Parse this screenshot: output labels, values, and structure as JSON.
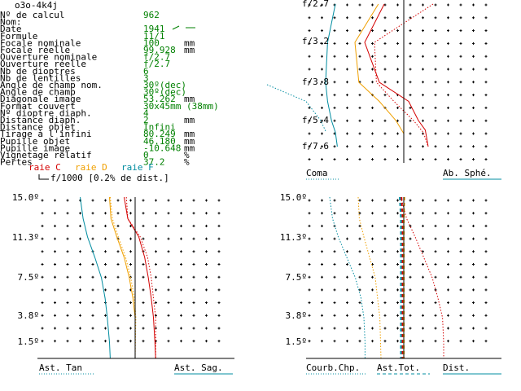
{
  "header": {
    "title": "o3o-4k4j"
  },
  "specs": [
    {
      "label": "Nº de calcul",
      "value": "962",
      "unit": ""
    },
    {
      "label": "Nom:",
      "value": "",
      "unit": ""
    },
    {
      "label": "Date",
      "value": "1941",
      "unit": ""
    },
    {
      "label": "Formule",
      "value": "11/1",
      "unit": ""
    },
    {
      "label": "Focale nominale",
      "value": "100",
      "unit": "mm"
    },
    {
      "label": "Focale réelle",
      "value": "99.928",
      "unit": "mm"
    },
    {
      "label": "Ouverture nominale",
      "value": "f/2.7",
      "unit": ""
    },
    {
      "label": "Ouverture réelle",
      "value": "f/2.7",
      "unit": ""
    },
    {
      "label": "Nb de dioptres",
      "value": "6",
      "unit": ""
    },
    {
      "label": "Nb de lentilles",
      "value": "3",
      "unit": ""
    },
    {
      "label": "Angle de champ nom.",
      "value": "30º(dec)",
      "unit": ""
    },
    {
      "label": "Angle de champ",
      "value": "30º(dec)",
      "unit": ""
    },
    {
      "label": "Diagonale image",
      "value": "53.262",
      "unit": "mm"
    },
    {
      "label": "Format couvert",
      "value": "30x45mm (38mm)",
      "unit": ""
    },
    {
      "label": "Nº dioptre diaph.",
      "value": "4",
      "unit": ""
    },
    {
      "label": "Distance diaph.",
      "value": "2",
      "unit": "mm"
    },
    {
      "label": "Distance objet",
      "value": "Infini",
      "unit": ""
    },
    {
      "label": "Tirage à l'infini",
      "value": "80.249",
      "unit": "mm"
    },
    {
      "label": "Pupille objet",
      "value": "46.180",
      "unit": "mm"
    },
    {
      "label": "Pupille image",
      "value": "-10.648",
      "unit": "mm"
    },
    {
      "label": "Vignetage relatif",
      "value": "0",
      "unit": "%"
    },
    {
      "label": "Pertes",
      "value": "37.2",
      "unit": "%"
    }
  ],
  "legend": {
    "raie_c": "raie C",
    "raie_d": "raie D",
    "raie_f": "raie F",
    "scale": "f/1000 [0.2% de dist.]"
  },
  "colors": {
    "c": "#d40000",
    "d": "#f0a000",
    "f": "#008ca0",
    "green": "#008000",
    "axis": "#000000"
  },
  "chart_data": [
    {
      "type": "line",
      "name": "Coma / Ab. Sphé.",
      "y_ticks": [
        "f/2.7",
        "f/3.2",
        "f/3.8",
        "f/5.4",
        "f/7.6"
      ],
      "labels": {
        "left": "Coma",
        "right": "Ab. Sphé."
      },
      "series": [
        {
          "key": "c",
          "style": "solid",
          "points": [
            [
              -2,
              2.7
            ],
            [
              -4,
              3.2
            ],
            [
              -2.5,
              3.8
            ],
            [
              0.5,
              4.6
            ],
            [
              1.5,
              5.4
            ],
            [
              2.2,
              6.2
            ],
            [
              2.5,
              7.6
            ]
          ]
        },
        {
          "key": "d",
          "style": "solid",
          "points": [
            [
              -2.6,
              2.7
            ],
            [
              -5,
              3.2
            ],
            [
              -4.6,
              3.8
            ],
            [
              -2.5,
              4.6
            ],
            [
              -0.8,
              5.4
            ],
            [
              0,
              6.5
            ],
            [
              0,
              7.6
            ]
          ]
        },
        {
          "key": "f",
          "style": "solid",
          "points": [
            [
              -7,
              2.7
            ],
            [
              -7.8,
              3.2
            ],
            [
              -8,
              3.8
            ],
            [
              -7.8,
              4.6
            ],
            [
              -7.4,
              5.4
            ],
            [
              -7,
              6.4
            ],
            [
              -6.8,
              7.6
            ]
          ]
        },
        {
          "key": "c",
          "style": "dotted",
          "points": [
            [
              3,
              2.7
            ],
            [
              -3,
              3.2
            ],
            [
              -2.8,
              3.8
            ],
            [
              -1,
              4.6
            ],
            [
              1,
              5.4
            ],
            [
              2,
              6.4
            ],
            [
              2.5,
              7.6
            ]
          ]
        },
        {
          "key": "f",
          "style": "dotted",
          "points": [
            [
              -14,
              3.9
            ],
            [
              -10,
              4.6
            ],
            [
              -8.5,
              5.4
            ],
            [
              -8,
              6.3
            ]
          ]
        }
      ]
    },
    {
      "type": "line",
      "name": "Ast. Tan / Ast. Sag.",
      "y_ticks": [
        "15.0º",
        "11.3º",
        "7.5º",
        "3.8º",
        "1.5º"
      ],
      "labels": {
        "left": "Ast. Tan",
        "right": "Ast. Sag."
      },
      "series": [
        {
          "key": "c",
          "style": "solid",
          "points": [
            [
              -1.5,
              15
            ],
            [
              -1,
              13
            ],
            [
              0.5,
              11.3
            ],
            [
              1.3,
              9.4
            ],
            [
              1.8,
              7.5
            ],
            [
              2.2,
              5.6
            ],
            [
              2.5,
              3.8
            ],
            [
              2.7,
              1.5
            ],
            [
              2.8,
              0
            ]
          ]
        },
        {
          "key": "d",
          "style": "solid",
          "points": [
            [
              -3.5,
              15
            ],
            [
              -3.3,
              13
            ],
            [
              -2.5,
              11.3
            ],
            [
              -1.5,
              9.4
            ],
            [
              -0.8,
              7.5
            ],
            [
              -0.3,
              5.6
            ],
            [
              0,
              3.8
            ],
            [
              0,
              0
            ]
          ]
        },
        {
          "key": "f",
          "style": "solid",
          "points": [
            [
              -7.5,
              15
            ],
            [
              -7.1,
              13
            ],
            [
              -6.5,
              11.3
            ],
            [
              -5.5,
              9.4
            ],
            [
              -4.6,
              7.5
            ],
            [
              -4.1,
              5.6
            ],
            [
              -3.8,
              3.8
            ],
            [
              -3.5,
              1.5
            ],
            [
              -3.4,
              0
            ]
          ]
        },
        {
          "key": "c",
          "style": "dotted",
          "points": [
            [
              -1.2,
              15
            ],
            [
              -1,
              13
            ],
            [
              0.7,
              11.3
            ],
            [
              1.7,
              9.4
            ],
            [
              2.2,
              7.5
            ],
            [
              2.5,
              5.6
            ],
            [
              2.8,
              3.8
            ],
            [
              2.8,
              0
            ]
          ]
        },
        {
          "key": "d",
          "style": "dotted",
          "points": [
            [
              -3.4,
              15
            ],
            [
              -3.1,
              13
            ],
            [
              -2.3,
              11.3
            ],
            [
              -1.3,
              9.4
            ],
            [
              -0.6,
              7.5
            ],
            [
              -0.1,
              5.6
            ],
            [
              0.1,
              3.8
            ],
            [
              0,
              0
            ]
          ]
        }
      ]
    },
    {
      "type": "line",
      "name": "Courb.Chp. / Ast.Tot. / Dist.",
      "y_ticks": [
        "15.0º",
        "11.3º",
        "7.5º",
        "3.8º",
        "1.5º"
      ],
      "labels": {
        "left": "Courb.Chp.",
        "mid": "Ast.Tot.",
        "right": "Dist."
      },
      "series": [
        {
          "key": "f",
          "style": "dotted",
          "points": [
            [
              -13,
              15
            ],
            [
              -12.5,
              13
            ],
            [
              -11.5,
              11.3
            ],
            [
              -10,
              9.4
            ],
            [
              -8.5,
              7.5
            ],
            [
              -7.5,
              5.6
            ],
            [
              -7,
              3.8
            ],
            [
              -6.8,
              1.5
            ],
            [
              -6.8,
              0
            ]
          ]
        },
        {
          "key": "d",
          "style": "dotted",
          "points": [
            [
              -8,
              15
            ],
            [
              -7.8,
              13
            ],
            [
              -7,
              11.3
            ],
            [
              -6,
              9.4
            ],
            [
              -5,
              7.5
            ],
            [
              -4.6,
              5.6
            ],
            [
              -4.2,
              3.8
            ],
            [
              -4,
              0
            ]
          ]
        },
        {
          "key": "c",
          "style": "dotted",
          "points": [
            [
              -0.5,
              15
            ],
            [
              0.5,
              13
            ],
            [
              2,
              11.3
            ],
            [
              3.5,
              9.4
            ],
            [
              5,
              7.5
            ],
            [
              6,
              5.6
            ],
            [
              6.8,
              3.8
            ],
            [
              7,
              1.5
            ],
            [
              7,
              0
            ]
          ]
        },
        {
          "key": "c",
          "style": "dashed",
          "points": [
            [
              -0.4,
              15
            ],
            [
              -0.2,
              13
            ],
            [
              -0.2,
              11.3
            ],
            [
              -0.2,
              9.4
            ],
            [
              -0.2,
              7.5
            ],
            [
              -0.2,
              5.6
            ],
            [
              -0.2,
              3.8
            ],
            [
              -0.2,
              0
            ]
          ]
        },
        {
          "key": "f",
          "style": "dashed",
          "points": [
            [
              -0.7,
              15
            ],
            [
              -0.5,
              13
            ],
            [
              -0.5,
              11.3
            ],
            [
              -0.5,
              9.4
            ],
            [
              -0.5,
              7.5
            ],
            [
              -0.5,
              5.6
            ],
            [
              -0.5,
              3.8
            ],
            [
              -0.5,
              0
            ]
          ]
        },
        {
          "key": "d",
          "style": "dashed",
          "points": [
            [
              0.1,
              15
            ],
            [
              0,
              13
            ],
            [
              0,
              11.3
            ],
            [
              0,
              9.4
            ],
            [
              0,
              7.5
            ],
            [
              0,
              5.6
            ],
            [
              0,
              3.8
            ],
            [
              0,
              0
            ]
          ]
        }
      ]
    }
  ]
}
